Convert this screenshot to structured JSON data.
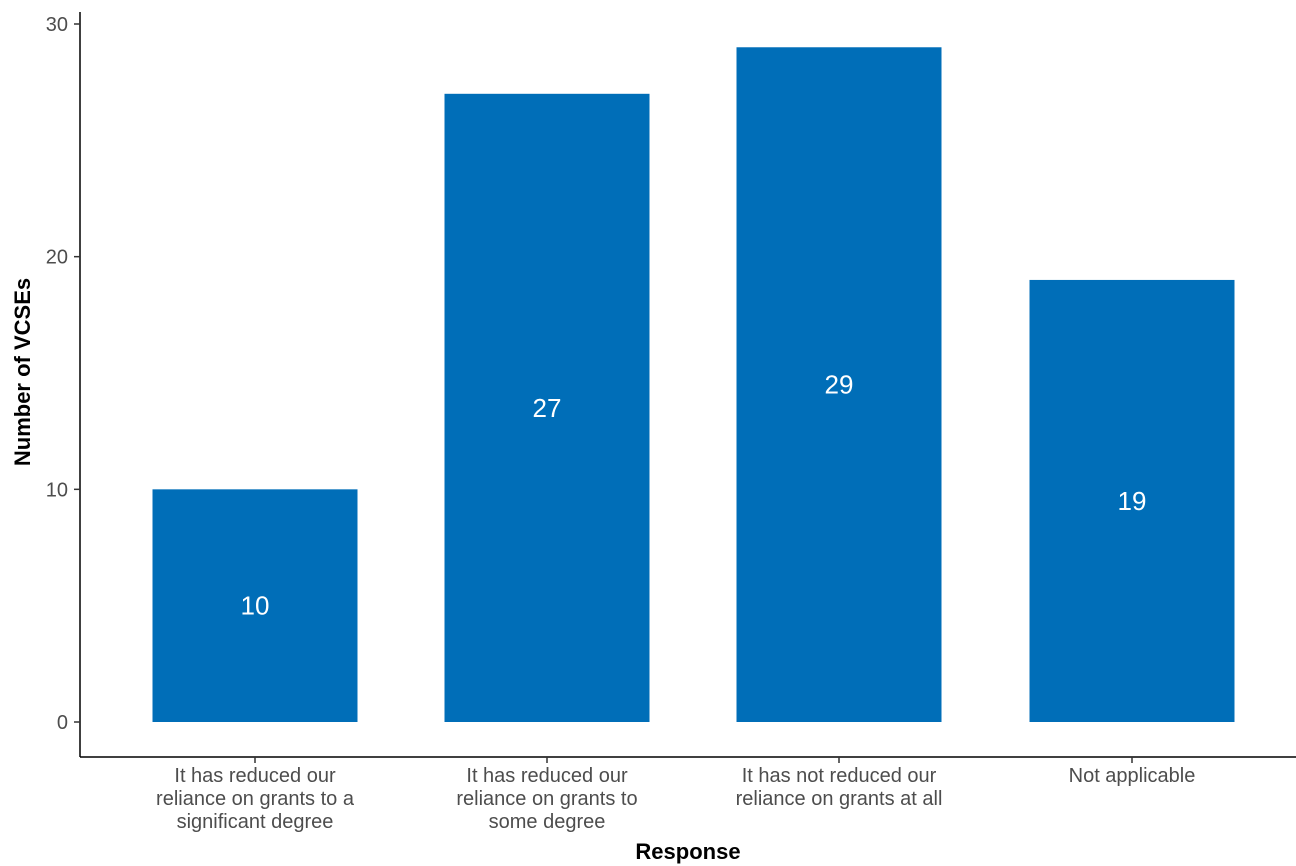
{
  "chart_data": {
    "type": "bar",
    "categories": [
      [
        "It has reduced our",
        "reliance on grants to a",
        "significant degree"
      ],
      [
        "It has reduced our",
        "reliance on grants to",
        "some degree"
      ],
      [
        "It has not reduced our",
        "reliance on grants at all"
      ],
      [
        "Not applicable"
      ]
    ],
    "values": [
      10,
      27,
      29,
      19
    ],
    "data_labels": [
      "10",
      "27",
      "29",
      "19"
    ],
    "xlabel": "Response",
    "ylabel": "Number of VCSEs",
    "ylim": [
      0,
      30
    ],
    "yticks": [
      0,
      10,
      20,
      30
    ],
    "grid": false,
    "bar_color": "#006EB8",
    "label_color": "#FFFFFF"
  }
}
